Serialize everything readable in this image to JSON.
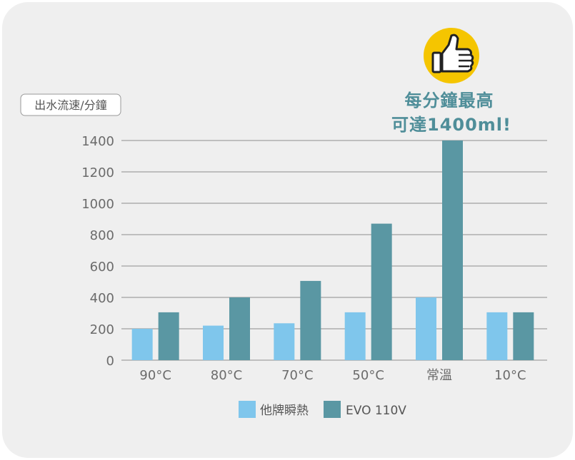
{
  "chart_data": {
    "type": "bar",
    "ylabel": "出水流速/分鐘",
    "categories": [
      "90°C",
      "80°C",
      "70°C",
      "50°C",
      "常溫",
      "10°C"
    ],
    "series": [
      {
        "name": "他牌瞬熱",
        "color": "#7fc6ec",
        "values": [
          200,
          220,
          235,
          305,
          400,
          305
        ]
      },
      {
        "name": "EVO 110V",
        "color": "#5a97a3",
        "values": [
          305,
          400,
          505,
          870,
          1400,
          305
        ]
      }
    ],
    "yticks": [
      "0",
      "200",
      "400",
      "600",
      "800",
      "1000",
      "1200",
      "1400"
    ],
    "ylim": [
      0,
      1400
    ],
    "grid": true,
    "legend_position": "bottom-center",
    "callout": {
      "line1": "每分鐘最高",
      "line2": "可達1400ml!",
      "icon": "thumbs-up-icon",
      "icon_color": "#f5c500",
      "text_color": "#4f8e99"
    }
  }
}
